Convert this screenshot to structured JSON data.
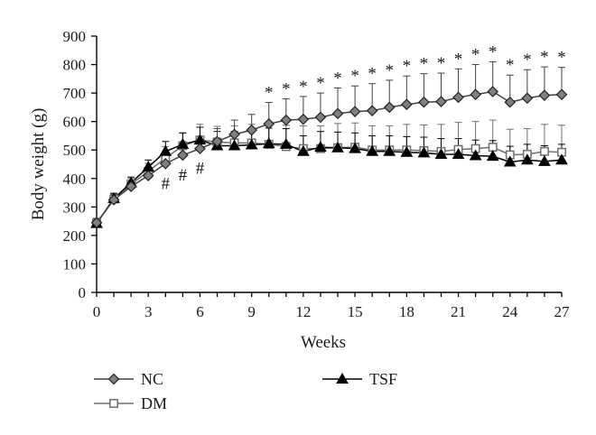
{
  "chart_data": {
    "type": "line",
    "title": "",
    "xlabel": "Weeks",
    "ylabel": "Body weight (g)",
    "xlim": [
      0,
      27
    ],
    "ylim": [
      0,
      900
    ],
    "x_ticks": [
      "0",
      "3",
      "6",
      "9",
      "12",
      "15",
      "18",
      "21",
      "24",
      "27"
    ],
    "y_ticks": [
      "0",
      "100",
      "200",
      "300",
      "400",
      "500",
      "600",
      "700",
      "800",
      "900"
    ],
    "grid": false,
    "legend_placement": "bottom",
    "x": [
      0,
      1,
      2,
      3,
      4,
      5,
      6,
      7,
      8,
      9,
      10,
      11,
      12,
      13,
      14,
      15,
      16,
      17,
      18,
      19,
      20,
      21,
      22,
      23,
      24,
      25,
      26,
      27
    ],
    "series": [
      {
        "name": "NC",
        "marker": "diamond",
        "color": "#404040",
        "fill": "#7f7f7f",
        "values": [
          245,
          325,
          372,
          410,
          452,
          482,
          505,
          530,
          555,
          570,
          592,
          605,
          608,
          615,
          628,
          635,
          638,
          650,
          660,
          668,
          670,
          685,
          695,
          705,
          668,
          682,
          692,
          695
        ],
        "errors": [
          15,
          18,
          18,
          25,
          35,
          38,
          40,
          45,
          50,
          55,
          75,
          75,
          80,
          85,
          90,
          90,
          95,
          95,
          100,
          100,
          100,
          100,
          105,
          105,
          95,
          100,
          100,
          95
        ]
      },
      {
        "name": "DM",
        "marker": "square-open",
        "color": "#6f6f6f",
        "fill": "#ffffff",
        "values": [
          243,
          328,
          380,
          425,
          472,
          515,
          535,
          528,
          525,
          525,
          520,
          512,
          505,
          505,
          508,
          510,
          500,
          500,
          500,
          498,
          495,
          502,
          505,
          510,
          483,
          485,
          495,
          492
        ],
        "errors": [
          15,
          18,
          20,
          28,
          40,
          45,
          55,
          55,
          60,
          65,
          70,
          75,
          80,
          80,
          85,
          85,
          85,
          85,
          90,
          90,
          95,
          95,
          95,
          95,
          90,
          90,
          95,
          95
        ]
      },
      {
        "name": "TSF",
        "marker": "triangle",
        "color": "#000000",
        "fill": "#000000",
        "values": [
          242,
          330,
          385,
          440,
          495,
          520,
          535,
          515,
          515,
          518,
          522,
          520,
          495,
          510,
          508,
          505,
          495,
          495,
          492,
          490,
          485,
          485,
          480,
          478,
          458,
          465,
          460,
          465
        ],
        "errors": [
          15,
          18,
          20,
          25,
          35,
          40,
          45,
          50,
          50,
          55,
          55,
          55,
          55,
          55,
          55,
          55,
          55,
          55,
          55,
          55,
          55,
          55,
          55,
          55,
          55,
          55,
          55,
          55
        ]
      }
    ],
    "annotations": [
      {
        "symbol": "#",
        "positions": [
          4,
          5,
          6
        ]
      },
      {
        "symbol": "*",
        "positions": [
          10,
          11,
          12,
          13,
          14,
          15,
          16,
          17,
          18,
          19,
          20,
          21,
          22,
          23,
          24,
          25,
          26,
          27
        ]
      }
    ]
  }
}
